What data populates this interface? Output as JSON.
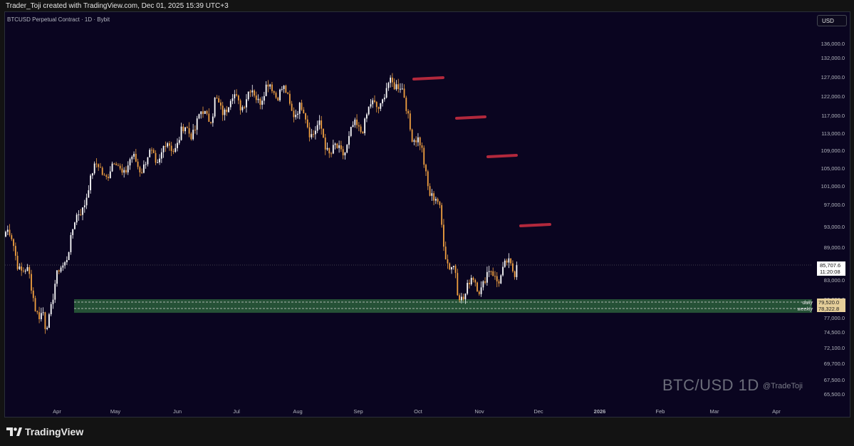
{
  "header": {
    "credit": "Trader_Toji created with TradingView.com, Dec 01, 2025 15:39 UTC+3"
  },
  "symbol": {
    "title": "BTCUSD Perpetual Contract · 1D · Bybit"
  },
  "currency": "USD",
  "branding": {
    "logo_text": "TradingView",
    "logo_icon": "tradingview-logo-icon"
  },
  "watermark": {
    "text": "BTC/USD 1D",
    "handle": "@TradeToji"
  },
  "colors": {
    "background": "#0a0520",
    "up": "#ffffff",
    "down": "#f0a040",
    "resistance": "#b2283c",
    "support_zone": "#2f6b3e"
  },
  "chart_data": {
    "type": "candlestick",
    "timeframe": "1D",
    "x_ticks": [
      "Apr",
      "May",
      "Jun",
      "Jul",
      "Aug",
      "Sep",
      "Oct",
      "Nov",
      "Dec",
      "2026",
      "Feb",
      "Mar",
      "Apr"
    ],
    "y_ticks": [
      "136,000.0",
      "132,000.0",
      "127,000.0",
      "122,000.0",
      "117,000.0",
      "113,000.0",
      "109,000.0",
      "105,000.0",
      "101,000.0",
      "97,000.0",
      "93,000.0",
      "89,000.0",
      "83,000.0",
      "80,000.0",
      "77,000.0",
      "74,500.0",
      "72,100.0",
      "69,700.0",
      "67,500.0",
      "65,500.0"
    ],
    "y_scale": "log",
    "last_price": {
      "value": "85,707.6",
      "countdown": "11:20:08"
    },
    "levels": [
      {
        "label": "daily",
        "value": "79,520.0"
      },
      {
        "label": "weekly",
        "value": "78,322.8"
      }
    ],
    "support_zone": {
      "from": 77800,
      "to": 80000
    },
    "resistance_marks": [
      {
        "date": "early Oct",
        "value": 126000
      },
      {
        "date": "early Nov",
        "value": 116500
      },
      {
        "date": "mid Nov",
        "value": 107500
      },
      {
        "date": "late Nov",
        "value": 93000
      }
    ],
    "monthly_path": [
      {
        "month": "Mar",
        "value": 92000
      },
      {
        "month": "Apr (low)",
        "value": 76000
      },
      {
        "month": "May",
        "value": 104000
      },
      {
        "month": "Jun",
        "value": 107000
      },
      {
        "month": "Jul",
        "value": 119000
      },
      {
        "month": "Aug",
        "value": 124000
      },
      {
        "month": "Sep",
        "value": 108000
      },
      {
        "month": "Oct (high)",
        "value": 126000
      },
      {
        "month": "Nov (low)",
        "value": 81000
      },
      {
        "month": "Dec",
        "value": 85707.6
      }
    ]
  }
}
